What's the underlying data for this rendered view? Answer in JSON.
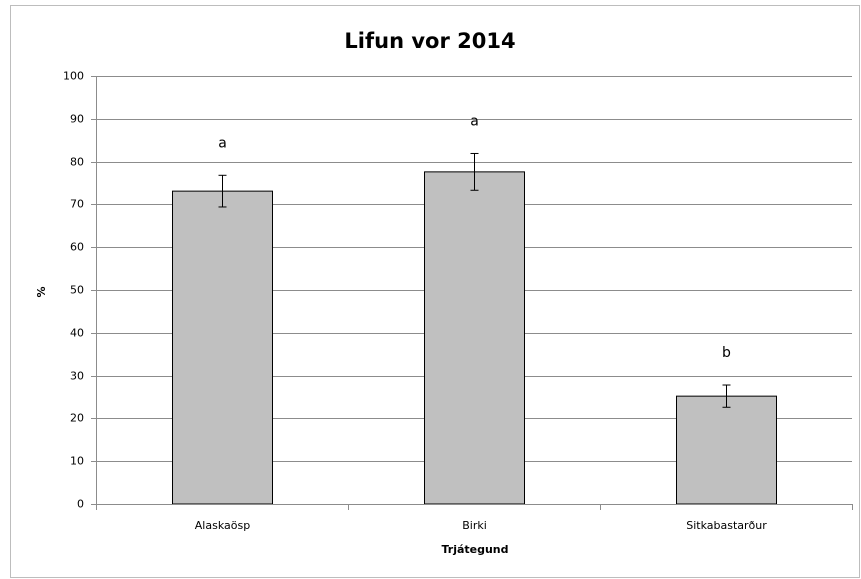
{
  "chart_data": {
    "type": "bar",
    "title": "Lifun vor 2014",
    "x_label": "Trjátegund",
    "y_label": "%",
    "categories": [
      "Alaskaösp",
      "Birki",
      "Sitkabastarður"
    ],
    "values": [
      73.1,
      77.6,
      25.2
    ],
    "errors": [
      3.7,
      4.3,
      2.6
    ],
    "annotations": [
      "a",
      "a",
      "b"
    ],
    "color": "#c0c0c0",
    "ylim": [
      0,
      100
    ],
    "yticks": [
      0,
      10,
      20,
      30,
      40,
      50,
      60,
      70,
      80,
      90,
      100
    ],
    "grid": true
  }
}
